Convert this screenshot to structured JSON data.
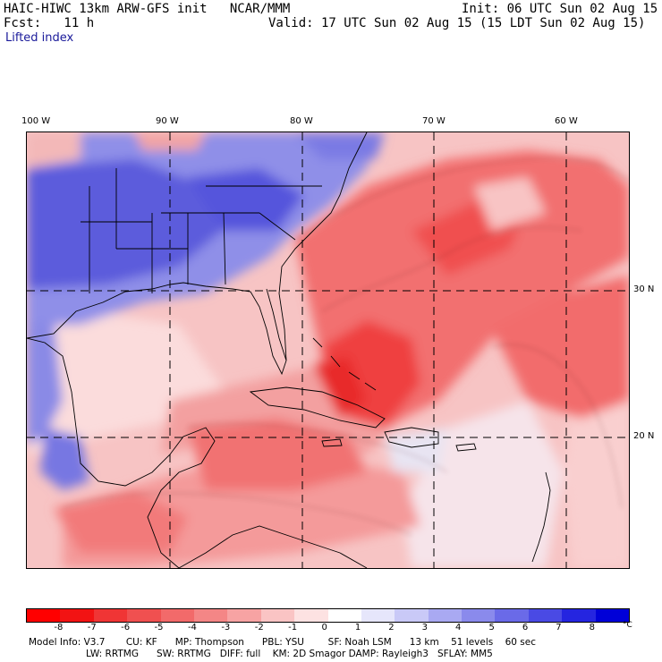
{
  "header": {
    "title": "HAIC-HIWC 13km ARW-GFS init   NCAR/MMM",
    "fcst": "Fcst:   11 h",
    "init": "Init: 06 UTC Sun 02 Aug 15",
    "valid": "Valid: 17 UTC Sun 02 Aug 15 (15 LDT Sun 02 Aug 15)",
    "field": "Lifted index"
  },
  "axes": {
    "lon_labels": [
      "100 W",
      "90 W",
      "80 W",
      "70 W",
      "60 W"
    ],
    "lat_labels": [
      "30 N",
      "20 N"
    ]
  },
  "colorbar": {
    "ticks": [
      "-8",
      "-7",
      "-6",
      "-5",
      "-4",
      "-3",
      "-2",
      "-1",
      "0",
      "1",
      "2",
      "3",
      "4",
      "5",
      "6",
      "7",
      "8"
    ],
    "unit": "°C",
    "colors": [
      "#ff0000",
      "#f21313",
      "#f03535",
      "#f05050",
      "#f26a6a",
      "#f48686",
      "#f7a3a3",
      "#fac4c4",
      "#fde2e2",
      "#ffffff",
      "#e6e6fb",
      "#c9c9f7",
      "#a9a9f2",
      "#8a8aec",
      "#6a6ae8",
      "#4a4ae4",
      "#2525e0",
      "#0000d8"
    ]
  },
  "model_info": {
    "line1": "Model Info: V3.7       CU: KF      MP: Thompson      PBL: YSU        SF: Noah LSM      13 km    51 levels    60 sec",
    "line2": "LW: RRTMG      SW: RRTMG   DIFF: full    KM: 2D Smagor DAMP: Rayleigh3   SFLAY: MM5"
  },
  "map_colors": {
    "strong_neg": "#ef3a3a",
    "mod_neg": "#f36d6d",
    "weak_neg": "#f9b3b3",
    "neutral": "#fbe5e5",
    "weak_pos": "#c9c9f5",
    "mod_pos": "#7a7ae6",
    "strong_pos": "#4b4bdc"
  }
}
